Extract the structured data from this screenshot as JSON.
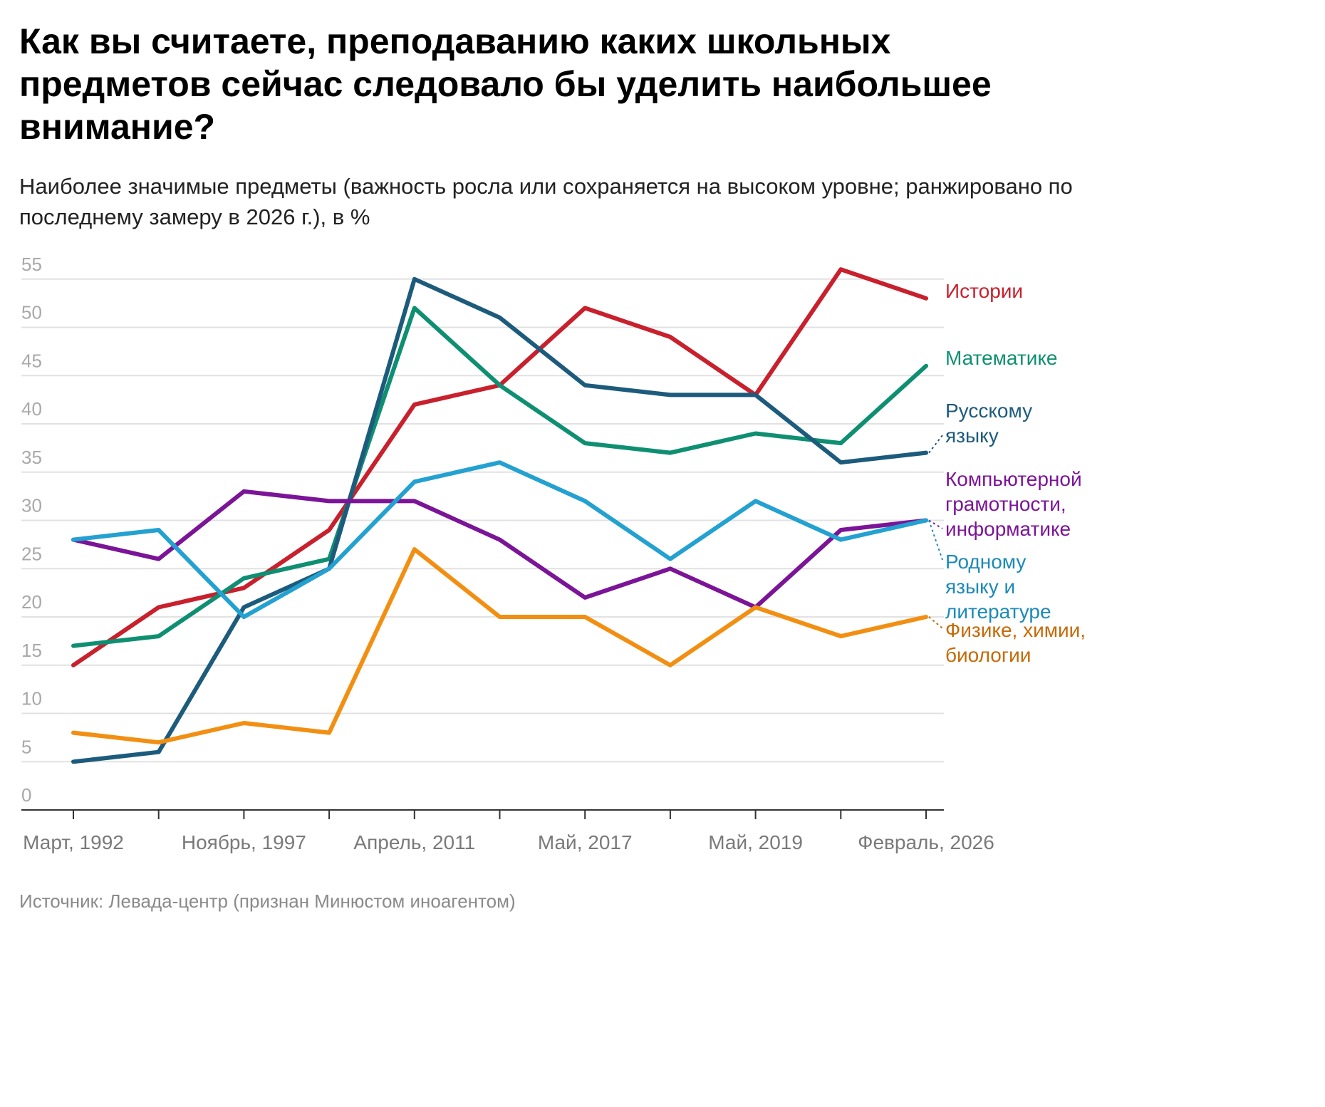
{
  "title": "Как вы считаете, преподаванию каких школьных предметов сейчас следовало бы уделить наибольшее внимание?",
  "subtitle": "Наиболее значимые предметы (важность росла или сохраняется на высоком уровне; ранжировано по последнему замеру в 2026 г.), в %",
  "source": "Источник: Левада-центр (признан Минюстом иноагентом)",
  "chart_data": {
    "type": "line",
    "title": "Как вы считаете, преподаванию каких школьных предметов сейчас следовало бы уделить наибольшее внимание?",
    "xlabel": "",
    "ylabel": "",
    "ylim": [
      0,
      55
    ],
    "yticks": [
      "0",
      "5",
      "10",
      "15",
      "20",
      "25",
      "30",
      "35",
      "40",
      "45",
      "50",
      "55"
    ],
    "x": [
      "Март, 1992",
      "",
      "Ноябрь, 1997",
      "",
      "Апрель, 2011",
      "",
      "Май, 2017",
      "",
      "Май, 2019",
      "",
      "Февраль, 2026"
    ],
    "xtick_labels": [
      "Март, 1992",
      "Ноябрь, 1997",
      "Апрель, 2011",
      "Май, 2017",
      "Май, 2019",
      "Февраль, 2026"
    ],
    "grid": true,
    "legend": "right, direct labels at line ends",
    "series": [
      {
        "name": "Истории",
        "color": "#c8202c",
        "label_color": "#c8202c",
        "values": [
          15,
          21,
          23,
          29,
          42,
          44,
          52,
          49,
          43,
          56,
          53
        ]
      },
      {
        "name": "Математике",
        "color": "#0f8f72",
        "label_color": "#0f8f72",
        "values": [
          17,
          18,
          24,
          26,
          52,
          44,
          38,
          37,
          39,
          38,
          46
        ]
      },
      {
        "name": "Русскому языку",
        "color": "#1c5b7c",
        "label_color": "#1c5b7c",
        "values": [
          5,
          6,
          21,
          25,
          55,
          51,
          44,
          43,
          43,
          36,
          37
        ]
      },
      {
        "name": "Компьютерной грамотности, информатике",
        "color": "#7b1497",
        "label_color": "#7b1497",
        "values": [
          28,
          26,
          33,
          32,
          32,
          28,
          22,
          25,
          21,
          29,
          30
        ]
      },
      {
        "name": "Родному языку и литературе",
        "color": "#23a1d1",
        "label_color": "#1c8ab8",
        "values": [
          28,
          29,
          20,
          25,
          34,
          36,
          32,
          26,
          32,
          28,
          30
        ]
      },
      {
        "name": "Физике, химии, биологии",
        "color": "#f28f12",
        "label_color": "#c56a05",
        "values": [
          8,
          7,
          9,
          8,
          27,
          20,
          20,
          15,
          21,
          18,
          20
        ]
      }
    ],
    "series_labels": [
      [
        "Истории"
      ],
      [
        "Математике"
      ],
      [
        "Русскому",
        "языку"
      ],
      [
        "Компьютерной",
        "грамотности,",
        "информатике"
      ],
      [
        "Родному",
        "языку и",
        "литературе"
      ],
      [
        "Физике, химии,",
        "биологии"
      ]
    ]
  }
}
